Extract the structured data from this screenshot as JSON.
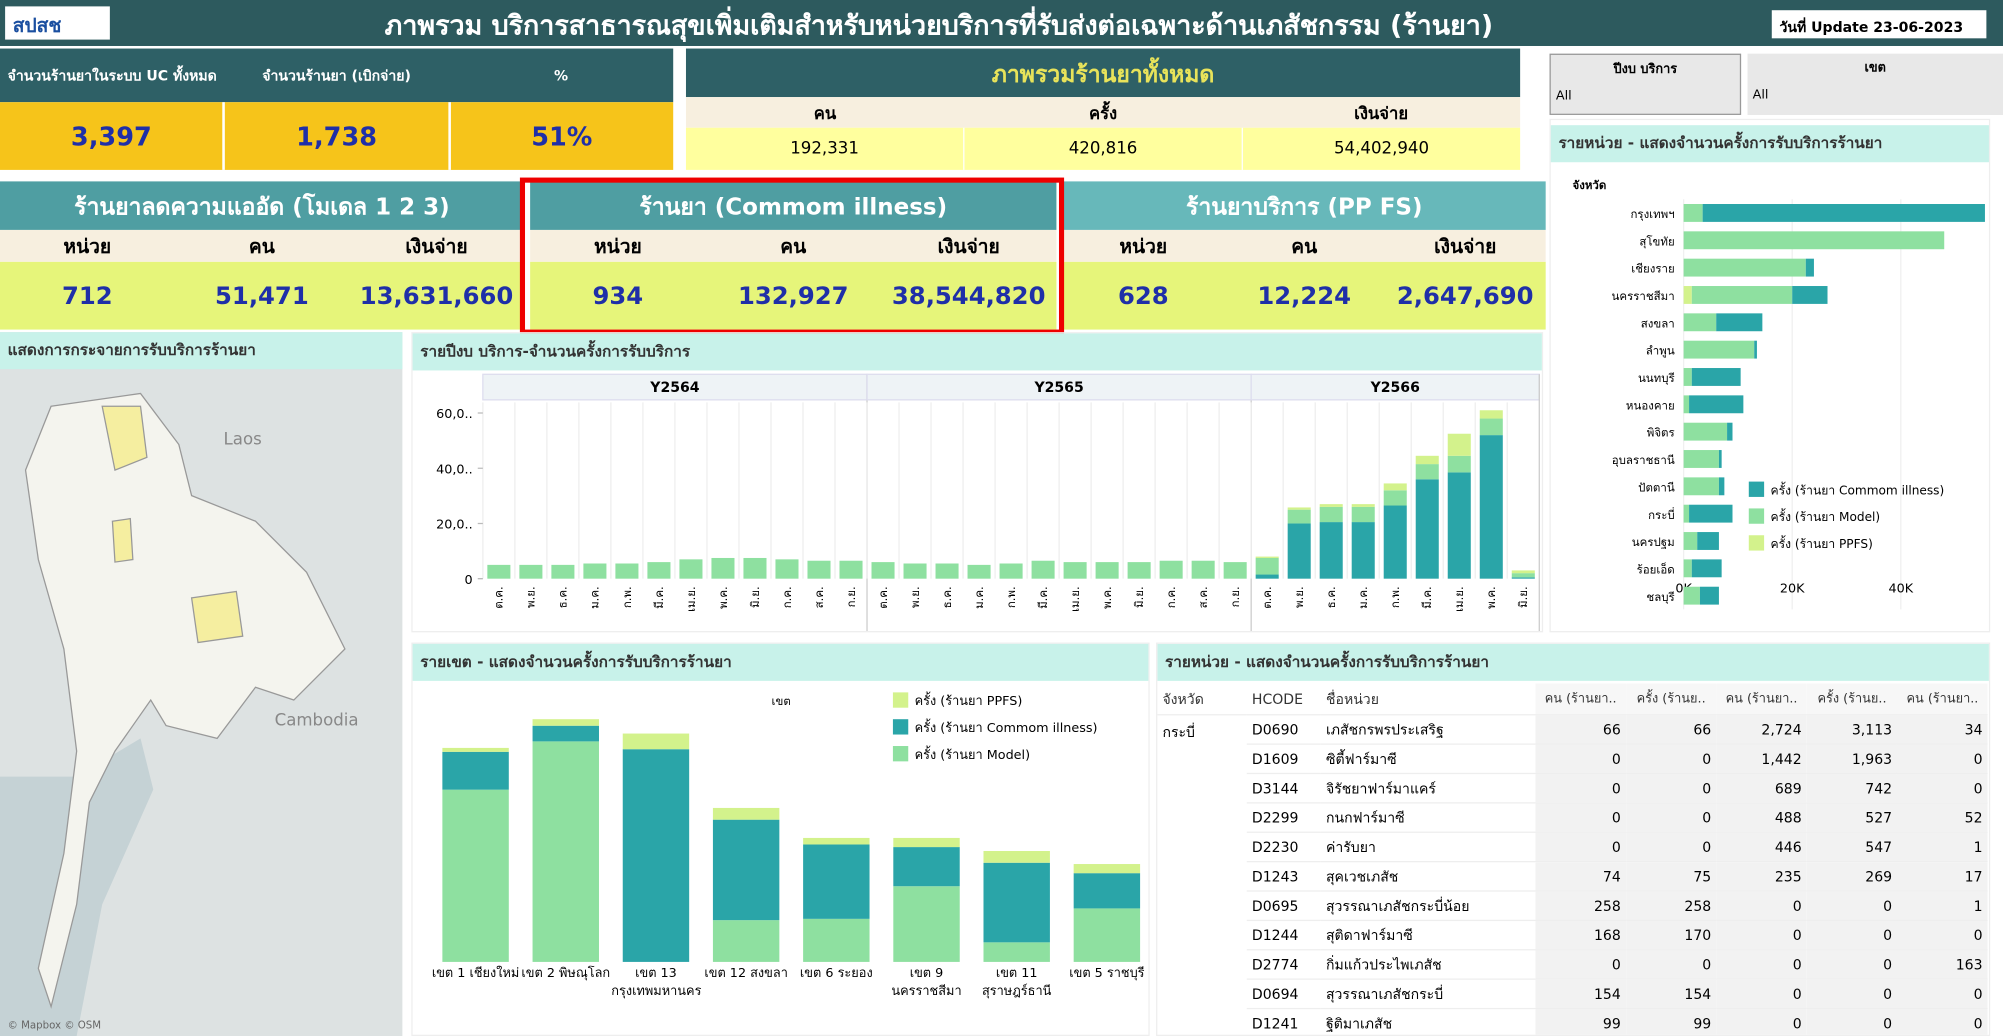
{
  "header": {
    "logo": "สปสช",
    "title": "ภาพรวม บริการสาธารณสุขเพิ่มเติมสำหรับหน่วยบริการที่รับส่งต่อเฉพาะด้านเภสัชกรรม (ร้านยา)",
    "update": "วันที่ Update 23-06-2023"
  },
  "kpi": {
    "headers": [
      "จำนวนร้านยาในระบบ UC ทั้งหมด",
      "จำนวนร้านยา (เบิกจ่าย)",
      "%"
    ],
    "values": [
      "3,397",
      "1,738",
      "51%"
    ]
  },
  "overall": {
    "title": "ภาพรวมร้านยาทั้งหมด",
    "headers": [
      "คน",
      "ครั้ง",
      "เงินจ่าย"
    ],
    "values": [
      "192,331",
      "420,816",
      "54,402,940"
    ]
  },
  "filters": [
    {
      "label": "ปีงบ บริการ",
      "value": "All"
    },
    {
      "label": "เขต",
      "value": "All"
    }
  ],
  "sections": [
    {
      "title": "ร้านยาลดความแออัด (โมเดล 1 2 3)",
      "headers": [
        "หน่วย",
        "คน",
        "เงินจ่าย"
      ],
      "values": [
        "712",
        "51,471",
        "13,631,660"
      ]
    },
    {
      "title": "ร้านยา (Commom illness)",
      "headers": [
        "หน่วย",
        "คน",
        "เงินจ่าย"
      ],
      "values": [
        "934",
        "132,927",
        "38,544,820"
      ]
    },
    {
      "title": "ร้านยาบริการ (PP FS)",
      "headers": [
        "หน่วย",
        "คน",
        "เงินจ่าย"
      ],
      "values": [
        "628",
        "12,224",
        "2,647,690"
      ]
    }
  ],
  "map": {
    "title": "แสดงการกระจายการรับบริการร้านยา",
    "labels": [
      "Laos",
      "Cambodia"
    ],
    "attribution": "© Mapbox © OSM"
  },
  "chart_data": [
    {
      "type": "bar",
      "stacked": true,
      "title": "รายปีงบ บริการ-จำนวนครั้งการรับบริการ",
      "groups": [
        {
          "name": "Y2564",
          "categories": [
            "ต.ค.",
            "พ.ย.",
            "ธ.ค.",
            "ม.ค.",
            "ก.พ.",
            "มี.ค.",
            "เม.ย.",
            "พ.ค.",
            "มิ.ย.",
            "ก.ค.",
            "ส.ค.",
            "ก.ย."
          ]
        },
        {
          "name": "Y2565",
          "categories": [
            "ต.ค.",
            "พ.ย.",
            "ธ.ค.",
            "ม.ค.",
            "ก.พ.",
            "มี.ค.",
            "เม.ย.",
            "พ.ค.",
            "มิ.ย.",
            "ก.ค.",
            "ส.ค.",
            "ก.ย."
          ]
        },
        {
          "name": "Y2566",
          "categories": [
            "ต.ค.",
            "พ.ย.",
            "ธ.ค.",
            "ม.ค.",
            "ก.พ.",
            "มี.ค.",
            "เม.ย.",
            "พ.ค.",
            "มิ.ย."
          ]
        }
      ],
      "series": [
        {
          "color": "#2aa5a8",
          "values": [
            0,
            0,
            0,
            0,
            0,
            0,
            0,
            0,
            0,
            0,
            0,
            0,
            0,
            0,
            0,
            0,
            0,
            0,
            0,
            0,
            0,
            0,
            0,
            0,
            1500,
            20000,
            20500,
            20500,
            26500,
            36000,
            38500,
            52000,
            500
          ]
        },
        {
          "color": "#8ee0a0",
          "values": [
            5000,
            5000,
            5000,
            5500,
            5500,
            6000,
            7000,
            7500,
            7500,
            7000,
            6500,
            6500,
            6000,
            5500,
            5500,
            5000,
            5500,
            6500,
            6000,
            6000,
            6000,
            6500,
            6500,
            6000,
            6000,
            5000,
            5500,
            5500,
            5500,
            5500,
            6000,
            6000,
            1500
          ]
        },
        {
          "color": "#d3f28c",
          "values": [
            0,
            0,
            0,
            0,
            0,
            0,
            0,
            0,
            0,
            0,
            0,
            0,
            0,
            0,
            0,
            0,
            0,
            0,
            0,
            0,
            0,
            0,
            0,
            0,
            500,
            800,
            1000,
            1000,
            2500,
            3000,
            8000,
            3000,
            1000
          ]
        }
      ],
      "ylim": [
        0,
        62000
      ],
      "yticks": [
        0,
        {
          "value": 20000,
          "label": "20,0.."
        },
        {
          "value": 40000,
          "label": "40,0.."
        },
        {
          "value": 60000,
          "label": "60,0.."
        }
      ]
    },
    {
      "type": "bar",
      "stacked": true,
      "orientation": "horizontal",
      "title": "รายหน่วย - แสดงจำนวนครั้งการรับบริการร้านยา",
      "axis_title": "จังหวัด",
      "categories": [
        "กรุงเทพฯ",
        "สุโขทัย",
        "เชียงราย",
        "นครราชสีมา",
        "สงขลา",
        "ลำพูน",
        "นนทบุรี",
        "หนองคาย",
        "พิจิตร",
        "อุบลราชธานี",
        "ปัตตานี",
        "กระบี่",
        "นครปฐม",
        "ร้อยเอ็ด",
        "ชลบุรี"
      ],
      "series": [
        {
          "name": "ครั้ง (ร้านยา Commom illness)",
          "color": "#2aa5a8",
          "values": [
            52000,
            0,
            1500,
            6500,
            8500,
            500,
            9000,
            10000,
            1000,
            500,
            1000,
            8000,
            4000,
            5500,
            3500
          ]
        },
        {
          "name": "ครั้ง (ร้านยา Model)",
          "color": "#8ee0a0",
          "values": [
            3500,
            48000,
            22500,
            18500,
            6000,
            13000,
            1500,
            1000,
            8000,
            6500,
            6500,
            1000,
            2500,
            1500,
            3000
          ]
        },
        {
          "name": "ครั้ง (ร้านยา PPFS)",
          "color": "#d3f28c",
          "values": [
            0,
            0,
            0,
            1500,
            0,
            0,
            0,
            0,
            0,
            0,
            0,
            0,
            0,
            0,
            0
          ]
        }
      ],
      "xlim": [
        0,
        56000
      ],
      "xticks": [
        {
          "value": 0,
          "label": "0K"
        },
        {
          "value": 20000,
          "label": "20K"
        },
        {
          "value": 40000,
          "label": "40K"
        }
      ],
      "legend": "lower right"
    },
    {
      "type": "bar",
      "stacked": true,
      "title": "รายเขต - แสดงจำนวนครั้งการรับบริการร้านยา",
      "legend_title": "เขต",
      "categories": [
        "เขต 1 เชียงใหม่",
        "เขต 2 พิษณุโลก",
        "เขต 13 กรุงเทพมหานคร",
        "เขต 12 สงขลา",
        "เขต 6 ระยอง",
        "เขต 9 นครราชสีมา",
        "เขต 11 สุราษฎร์ธานี",
        "เขต 5 ราชบุรี"
      ],
      "series": [
        {
          "name": "ครั้ง (ร้านยา PPFS)",
          "color": "#d3f28c",
          "values": [
            1200,
            2000,
            4800,
            3600,
            2000,
            2800,
            3600,
            2800
          ]
        },
        {
          "name": "ครั้ง (ร้านยา Commom illness)",
          "color": "#2aa5a8",
          "values": [
            11600,
            4800,
            65200,
            30800,
            22800,
            12000,
            24400,
            10800
          ]
        },
        {
          "name": "ครั้ง (ร้านยา Model)",
          "color": "#8ee0a0",
          "values": [
            52800,
            67600,
            0,
            12800,
            13200,
            23200,
            6000,
            16400
          ]
        }
      ],
      "legend": "upper right"
    }
  ],
  "table": {
    "title": "รายหน่วย - แสดงจำนวนครั้งการรับบริการร้านยา",
    "columns": [
      "จังหวัด",
      "HCODE",
      "ชื่อหน่วย",
      "คน (ร้านยา..",
      "ครั้ง (ร้านย..",
      "คน (ร้านยา..",
      "ครั้ง (ร้านย..",
      "คน (ร้านยา.."
    ],
    "groups": [
      {
        "province": "กระบี่",
        "rows": [
          [
            "D0690",
            "เภสัชกรพรประเสริฐ",
            "66",
            "66",
            "2,724",
            "3,113",
            "34"
          ],
          [
            "D1609",
            "ซิตี้ฟาร์มาซี",
            "0",
            "0",
            "1,442",
            "1,963",
            "0"
          ],
          [
            "D3144",
            "จิรัชยาฟาร์มาแคร์",
            "0",
            "0",
            "689",
            "742",
            "0"
          ],
          [
            "D2299",
            "กนกฟาร์มาซี",
            "0",
            "0",
            "488",
            "527",
            "52"
          ],
          [
            "D2230",
            "ค่ารับยา",
            "0",
            "0",
            "446",
            "547",
            "1"
          ],
          [
            "D1243",
            "สุคเวชเภสัช",
            "74",
            "75",
            "235",
            "269",
            "17"
          ],
          [
            "D0695",
            "สุวรรณาเภสัชกระบี่น้อย",
            "258",
            "258",
            "0",
            "0",
            "1"
          ],
          [
            "D1244",
            "สุติดาฟาร์มาซี",
            "168",
            "170",
            "0",
            "0",
            "0"
          ],
          [
            "D2774",
            "กิ่มแก้วประไพเภสัช",
            "0",
            "0",
            "0",
            "0",
            "163"
          ],
          [
            "D0694",
            "สุวรรณาเภสัชกระบี่",
            "154",
            "154",
            "0",
            "0",
            "0"
          ],
          [
            "D1241",
            "ฐิติมาเภสัช",
            "99",
            "99",
            "0",
            "0",
            "0"
          ]
        ]
      }
    ]
  }
}
